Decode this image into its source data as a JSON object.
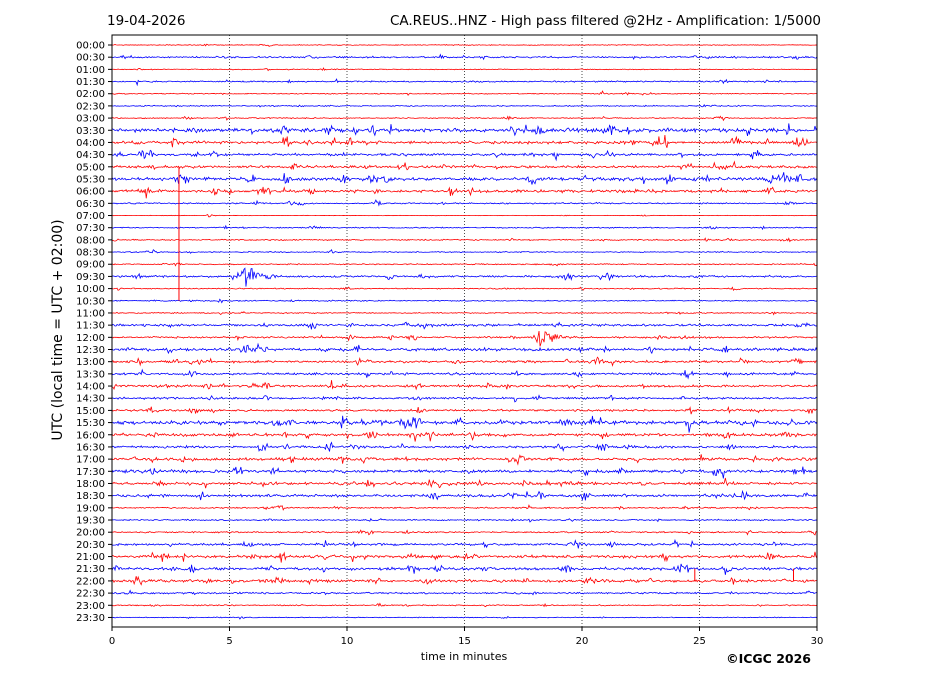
{
  "header": {
    "date": "19-04-2026",
    "title": "CA.REUS..HNZ - High pass filtered @2Hz - Amplification: 1/5000"
  },
  "footer": {
    "copyright": "©ICGC 2026"
  },
  "chart_data": {
    "type": "line",
    "title": "CA.REUS..HNZ - High pass filtered @2Hz - Amplification: 1/5000",
    "xlabel": "time in minutes",
    "ylabel": "UTC (local time = UTC + 02:00)",
    "xlim": [
      0,
      30
    ],
    "x_ticks": [
      "0",
      "5",
      "10",
      "15",
      "20",
      "25",
      "30"
    ],
    "grid": "vertical dotted lines at 5-minute intervals",
    "colors": {
      "odd_row": "#ff0000",
      "even_row": "#0000ff"
    },
    "rows": [
      "00:00",
      "00:30",
      "01:00",
      "01:30",
      "02:00",
      "02:30",
      "03:00",
      "03:30",
      "04:00",
      "04:30",
      "05:00",
      "05:30",
      "06:00",
      "06:30",
      "07:00",
      "07:30",
      "08:00",
      "08:30",
      "09:00",
      "09:30",
      "10:00",
      "10:30",
      "11:00",
      "11:30",
      "12:00",
      "12:30",
      "13:00",
      "13:30",
      "14:00",
      "14:30",
      "15:00",
      "15:30",
      "16:00",
      "16:30",
      "17:00",
      "17:30",
      "18:00",
      "18:30",
      "19:00",
      "19:30",
      "20:00",
      "20:30",
      "21:00",
      "21:30",
      "22:00",
      "22:30",
      "23:00",
      "23:30"
    ],
    "row_colors": [
      "red",
      "blue",
      "red",
      "blue",
      "red",
      "blue",
      "red",
      "blue",
      "red",
      "blue",
      "red",
      "blue",
      "red",
      "blue",
      "red",
      "blue",
      "red",
      "blue",
      "red",
      "blue",
      "red",
      "blue",
      "red",
      "blue",
      "red",
      "blue",
      "red",
      "blue",
      "red",
      "blue",
      "red",
      "blue",
      "red",
      "blue",
      "red",
      "blue",
      "red",
      "blue",
      "red",
      "blue",
      "red",
      "blue",
      "red",
      "blue",
      "red",
      "blue",
      "red",
      "blue"
    ],
    "noise_level": [
      0.6,
      1.2,
      0.6,
      1.0,
      0.7,
      0.8,
      0.8,
      2.6,
      2.0,
      1.6,
      1.8,
      2.4,
      2.0,
      1.0,
      0.3,
      0.8,
      0.9,
      0.8,
      0.8,
      1.4,
      0.8,
      0.8,
      0.8,
      1.6,
      1.2,
      2.0,
      1.6,
      1.6,
      1.6,
      1.5,
      1.5,
      2.6,
      2.0,
      1.6,
      2.0,
      2.0,
      2.0,
      1.8,
      1.0,
      1.0,
      1.0,
      1.6,
      2.0,
      2.0,
      2.0,
      1.2,
      0.8,
      0.6
    ],
    "events": [
      {
        "row": "09:30",
        "start_min": 5.0,
        "duration_min": 2.5,
        "peak_amplitude": 9
      },
      {
        "row": "12:00",
        "start_min": 17.8,
        "duration_min": 2.0,
        "peak_amplitude": 10
      },
      {
        "row": "18:30",
        "start_min": 13.6,
        "duration_min": 0.5,
        "peak_amplitude": 7
      },
      {
        "row": "18:30",
        "start_min": 18.1,
        "duration_min": 0.4,
        "peak_amplitude": 8
      },
      {
        "row": "17:00",
        "start_min": 17.2,
        "duration_min": 0.5,
        "peak_amplitude": 8
      },
      {
        "row": "17:00",
        "start_min": 7.5,
        "duration_min": 0.4,
        "peak_amplitude": 6
      },
      {
        "row": "17:00",
        "start_min": 2.9,
        "duration_min": 0.4,
        "peak_amplitude": 5
      },
      {
        "row": "17:00",
        "start_min": 12.4,
        "duration_min": 0.4,
        "peak_amplitude": 5
      },
      {
        "row": "04:00",
        "start_min": 0.8,
        "duration_min": 0.6,
        "peak_amplitude": 5
      },
      {
        "row": "05:00",
        "start_min": 1.6,
        "duration_min": 0.6,
        "peak_amplitude": 5
      },
      {
        "row": "06:00",
        "start_min": 11.1,
        "duration_min": 0.4,
        "peak_amplitude": 5
      },
      {
        "row": "21:00",
        "start_min": 1.6,
        "duration_min": 0.6,
        "peak_amplitude": 5
      },
      {
        "row": "21:00",
        "start_min": 10.1,
        "duration_min": 0.4,
        "peak_amplitude": 5
      },
      {
        "row": "16:00",
        "start_min": 0.4,
        "duration_min": 0.3,
        "peak_amplitude": 5
      },
      {
        "row": "16:00",
        "start_min": 1.7,
        "duration_min": 0.3,
        "peak_amplitude": 5
      },
      {
        "row": "22:00",
        "start_min": 5.0,
        "duration_min": 0.4,
        "peak_amplitude": 4
      },
      {
        "row": "22:00",
        "start_min": 6.8,
        "duration_min": 0.6,
        "peak_amplitude": 5
      },
      {
        "row": "14:00",
        "start_min": 6.3,
        "duration_min": 1.0,
        "peak_amplitude": 4
      },
      {
        "row": "13:00",
        "start_min": 1.0,
        "duration_min": 0.5,
        "peak_amplitude": 4
      },
      {
        "row": "04:30",
        "start_min": 21.0,
        "duration_min": 0.6,
        "peak_amplitude": 5
      },
      {
        "row": "05:30",
        "start_min": 25.2,
        "duration_min": 0.6,
        "peak_amplitude": 5
      },
      {
        "row": "03:30",
        "start_min": 21.8,
        "duration_min": 0.6,
        "peak_amplitude": 5
      },
      {
        "row": "18:00",
        "start_min": 3.8,
        "duration_min": 0.6,
        "peak_amplitude": 5
      },
      {
        "row": "12:30",
        "start_min": 10.3,
        "duration_min": 0.3,
        "peak_amplitude": 5
      },
      {
        "row": "12:30",
        "start_min": 29.9,
        "duration_min": 0.1,
        "peak_amplitude": 6
      },
      {
        "row": "15:30",
        "start_min": 11.3,
        "duration_min": 0.5,
        "peak_amplitude": 5
      },
      {
        "row": "20:30",
        "start_min": 24.6,
        "duration_min": 0.2,
        "peak_amplitude": 6
      },
      {
        "row": "07:00",
        "start_min": 4.0,
        "duration_min": 0.5,
        "peak_amplitude": 2
      }
    ],
    "spikes": [
      {
        "from_row": "05:00",
        "to_row": "10:30",
        "minute": 2.85
      },
      {
        "from_row": "21:30",
        "to_row": "22:00",
        "minute": 24.8
      },
      {
        "from_row": "21:30",
        "to_row": "22:00",
        "minute": 29.0
      }
    ]
  }
}
